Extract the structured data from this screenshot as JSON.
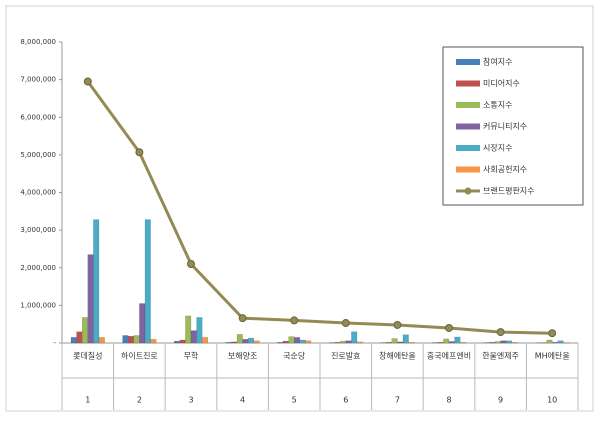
{
  "chart_data": {
    "type": "bar",
    "categories": [
      "롯데칠성",
      "하이트진로",
      "무학",
      "보해양조",
      "국순당",
      "진로발효",
      "창해에탄올",
      "흥국에프엔비",
      "한울엔제주",
      "MH에탄올"
    ],
    "category_numbers": [
      "1",
      "2",
      "3",
      "4",
      "5",
      "6",
      "7",
      "8",
      "9",
      "10"
    ],
    "series": [
      {
        "name": "참여지수",
        "color": "#4a7ebb",
        "values": [
          150000,
          200000,
          50000,
          20000,
          20000,
          10000,
          10000,
          10000,
          10000,
          5000
        ]
      },
      {
        "name": "미디어지수",
        "color": "#c0504d",
        "values": [
          300000,
          180000,
          80000,
          30000,
          50000,
          20000,
          20000,
          20000,
          20000,
          10000
        ]
      },
      {
        "name": "소통지수",
        "color": "#9bbb59",
        "values": [
          680000,
          200000,
          720000,
          230000,
          170000,
          50000,
          120000,
          110000,
          40000,
          80000
        ]
      },
      {
        "name": "커뮤니티지수",
        "color": "#8064a2",
        "values": [
          2350000,
          1050000,
          330000,
          100000,
          150000,
          60000,
          30000,
          40000,
          60000,
          20000
        ]
      },
      {
        "name": "시장지수",
        "color": "#4bacc6",
        "values": [
          3280000,
          3280000,
          680000,
          130000,
          80000,
          300000,
          220000,
          160000,
          60000,
          60000
        ]
      },
      {
        "name": "사회공헌지수",
        "color": "#f79646",
        "values": [
          150000,
          100000,
          150000,
          60000,
          60000,
          30000,
          20000,
          20000,
          20000,
          10000
        ]
      },
      {
        "name": "브랜드평판지수",
        "color": "#948a54",
        "type": "line",
        "values": [
          6950000,
          5070000,
          2100000,
          660000,
          600000,
          530000,
          480000,
          400000,
          290000,
          260000
        ]
      }
    ],
    "ylim": [
      0,
      8000000
    ],
    "yticks": [
      {
        "value": 0,
        "label": "-"
      },
      {
        "value": 1000000,
        "label": "1,000,000"
      },
      {
        "value": 2000000,
        "label": "2,000,000"
      },
      {
        "value": 3000000,
        "label": "3,000,000"
      },
      {
        "value": 4000000,
        "label": "4,000,000"
      },
      {
        "value": 5000000,
        "label": "5,000,000"
      },
      {
        "value": 6000000,
        "label": "6,000,000"
      },
      {
        "value": 7000000,
        "label": "7,000,000"
      },
      {
        "value": 8000000,
        "label": "8,000,000"
      }
    ],
    "legend": "right"
  }
}
